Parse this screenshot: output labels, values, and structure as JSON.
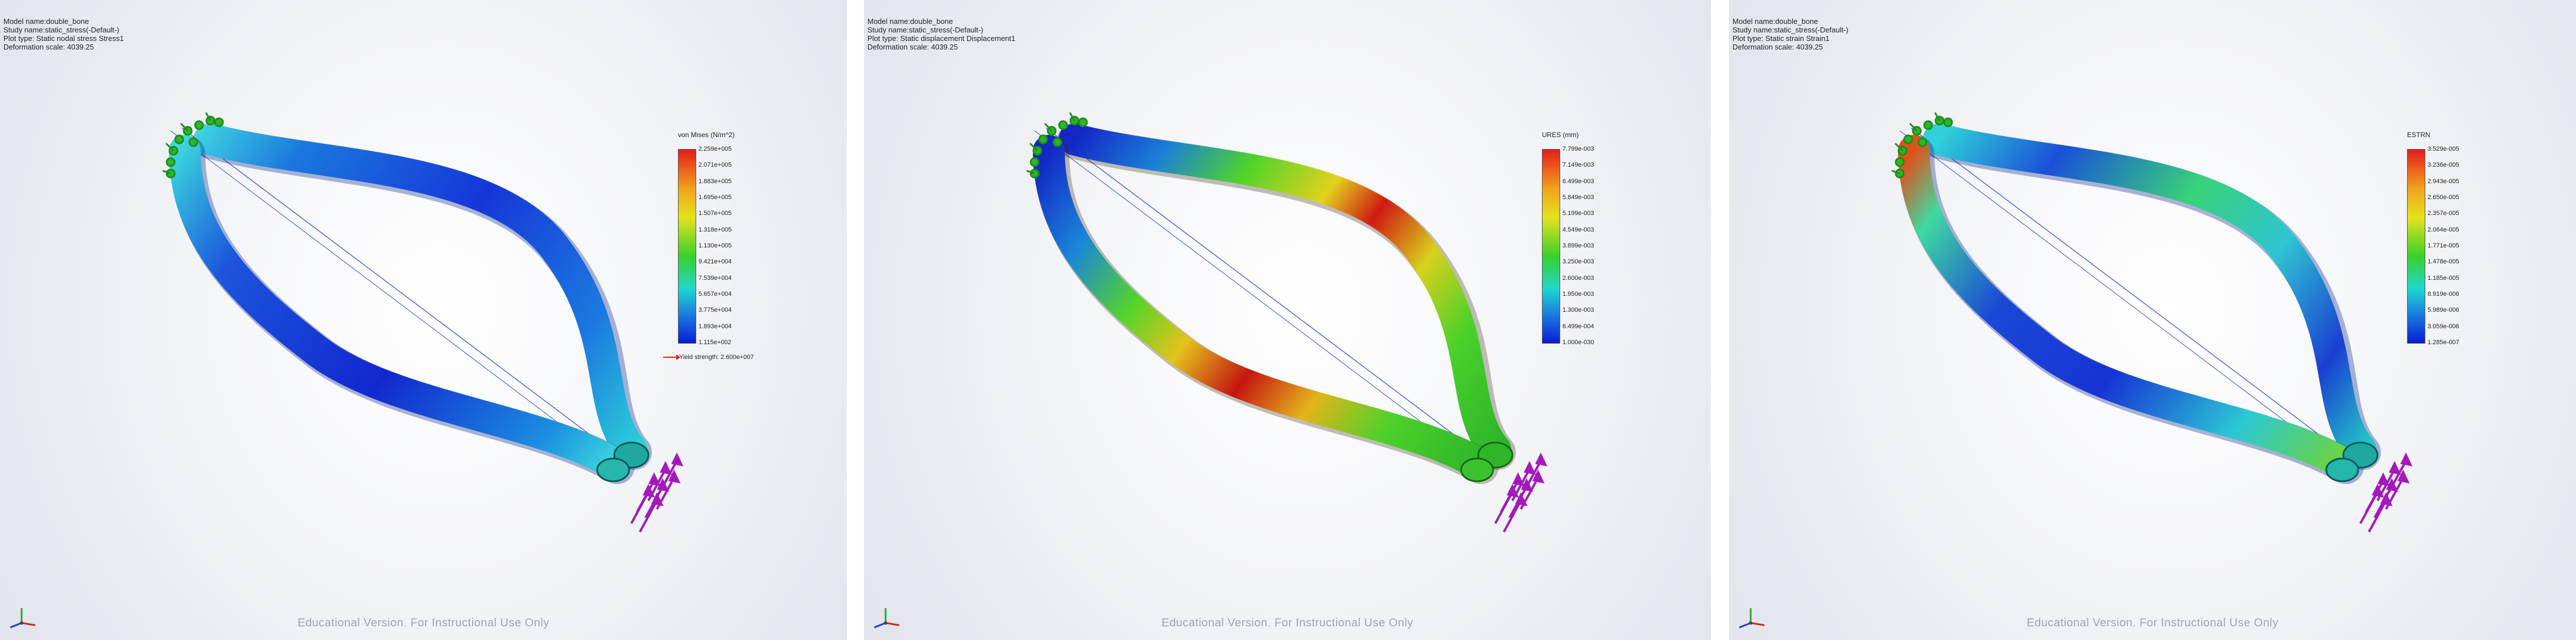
{
  "panels": [
    {
      "info": {
        "model": "Model name:double_bone",
        "study": "Study name:static_stress(-Default-)",
        "plot_type": "Plot type: Static nodal stress Stress1",
        "deformation": "Deformation scale: 4039.25"
      },
      "legend": {
        "title": "von Mises (N/m^2)",
        "ticks": [
          "2.259e+005",
          "2.071e+005",
          "1.883e+005",
          "1.695e+005",
          "1.507e+005",
          "1.318e+005",
          "1.130e+005",
          "9.421e+004",
          "7.539e+004",
          "5.657e+004",
          "3.775e+004",
          "1.893e+004",
          "1.115e+002"
        ],
        "yield_strength": "Yield strength: 2.600e+007"
      },
      "scheme": "stress",
      "watermark": "Educational Version. For Instructional Use Only"
    },
    {
      "info": {
        "model": "Model name:double_bone",
        "study": "Study name:static_stress(-Default-)",
        "plot_type": "Plot type: Static displacement Displacement1",
        "deformation": "Deformation scale: 4039.25"
      },
      "legend": {
        "title": "URES (mm)",
        "ticks": [
          "7.799e-003",
          "7.149e-003",
          "6.499e-003",
          "5.849e-003",
          "5.199e-003",
          "4.549e-003",
          "3.899e-003",
          "3.250e-003",
          "2.600e-003",
          "1.950e-003",
          "1.300e-003",
          "6.499e-004",
          "1.000e-030"
        ]
      },
      "scheme": "displacement",
      "watermark": "Educational Version. For Instructional Use Only"
    },
    {
      "info": {
        "model": "Model name:double_bone",
        "study": "Study name:static_stress(-Default-)",
        "plot_type": "Plot type: Static strain Strain1",
        "deformation": "Deformation scale: 4039.25"
      },
      "legend": {
        "title": "ESTRN",
        "ticks": [
          "3.529e-005",
          "3.236e-005",
          "2.943e-005",
          "2.650e-005",
          "2.357e-005",
          "2.064e-005",
          "1.771e-005",
          "1.478e-005",
          "1.185e-005",
          "8.919e-006",
          "5.989e-006",
          "3.059e-006",
          "1.285e-007"
        ]
      },
      "scheme": "strain",
      "watermark": "Educational Version. For Instructional Use Only"
    }
  ],
  "colors": {
    "bar_top": "#e41b1b",
    "bar_mid": "#3ad12a",
    "bar_bottom": "#0b1cd6",
    "fixture_green": "#2fb52a",
    "load_magenta": "#a21ab9"
  }
}
